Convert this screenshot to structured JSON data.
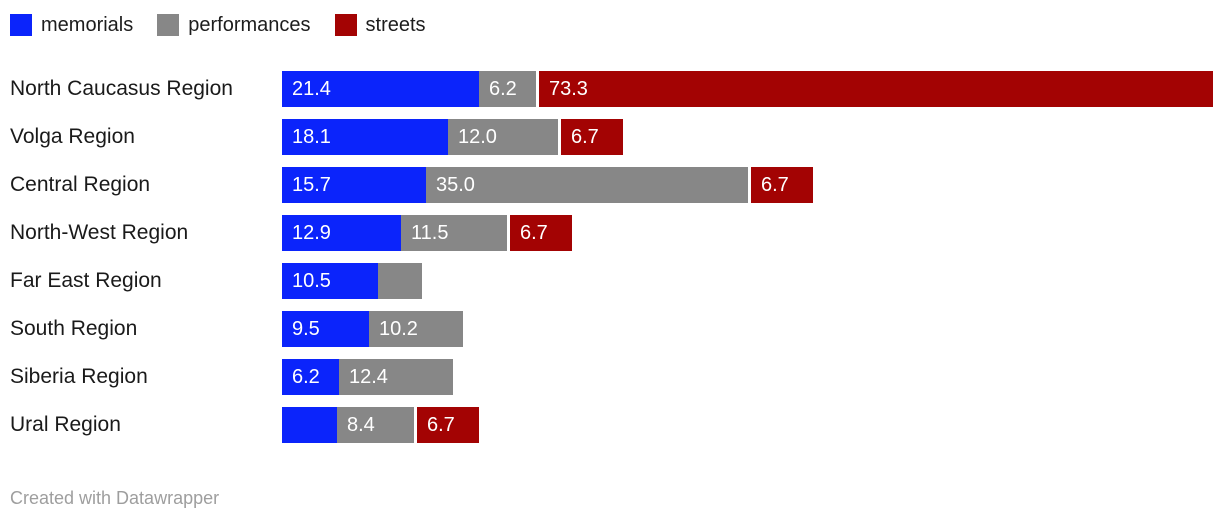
{
  "legend": {
    "items": [
      {
        "label": "memorials",
        "color": "#0b24fb"
      },
      {
        "label": "performances",
        "color": "#878787"
      },
      {
        "label": "streets",
        "color": "#a30303"
      }
    ]
  },
  "chart_data": {
    "type": "bar",
    "orientation": "horizontal",
    "stacked": true,
    "grid": false,
    "legend_position": "top",
    "categories": [
      "North Caucasus Region",
      "Volga Region",
      "Central Region",
      "North-West Region",
      "Far East Region",
      "South Region",
      "Siberia Region",
      "Ural Region"
    ],
    "series": [
      {
        "name": "memorials",
        "color": "#0b24fb",
        "values": [
          21.4,
          18.1,
          15.7,
          12.9,
          10.5,
          9.5,
          6.2,
          6.0
        ],
        "labels": [
          "21.4",
          "18.1",
          "15.7",
          "12.9",
          "10.5",
          "9.5",
          "6.2",
          ""
        ]
      },
      {
        "name": "performances",
        "color": "#878787",
        "values": [
          6.2,
          12.0,
          35.0,
          11.5,
          4.8,
          10.2,
          12.4,
          8.4
        ],
        "labels": [
          "6.2",
          "12.0",
          "35.0",
          "11.5",
          "",
          "10.2",
          "12.4",
          "8.4"
        ]
      },
      {
        "name": "streets",
        "color": "#a30303",
        "values": [
          73.3,
          6.7,
          6.7,
          6.7,
          0,
          0,
          0,
          6.7
        ],
        "labels": [
          "73.3",
          "6.7",
          "6.7",
          "6.7",
          "",
          "",
          "",
          "6.7"
        ]
      }
    ],
    "value_axis_hidden": true
  },
  "footer": {
    "credit": "Created with Datawrapper"
  }
}
